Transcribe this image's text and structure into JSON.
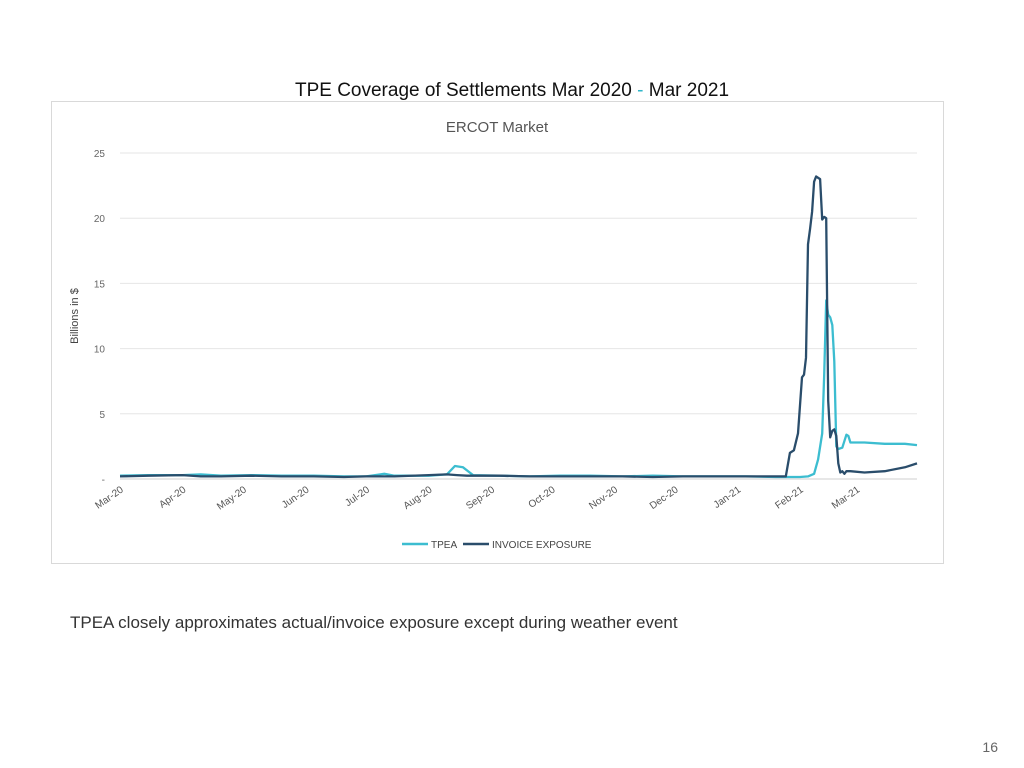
{
  "slide": {
    "title_part1": "TPE Coverage of Settlements Mar 2020",
    "title_dash": "-",
    "title_part2": "Mar 2021",
    "caption": "TPEA closely approximates actual/invoice exposure except during weather event",
    "page_number": "16"
  },
  "chart_data": {
    "type": "line",
    "title": "ERCOT Market",
    "xlabel": "",
    "ylabel": "Billions in $",
    "ylim": [
      0,
      25
    ],
    "y_ticks": [
      "-",
      "5",
      "10",
      "15",
      "20",
      "25"
    ],
    "x_range": [
      "2020-03-01",
      "2021-03-31"
    ],
    "x_ticks": [
      "Mar-20",
      "Apr-20",
      "May-20",
      "Jun-20",
      "Jul-20",
      "Aug-20",
      "Sep-20",
      "Oct-20",
      "Nov-20",
      "Dec-20",
      "Jan-21",
      "Feb-21",
      "Mar-21"
    ],
    "grid": true,
    "legend_position": "bottom",
    "series": [
      {
        "name": "TPEA",
        "color": "#3cbdd0",
        "points": [
          [
            "2020-03-01",
            0.25
          ],
          [
            "2020-03-15",
            0.3
          ],
          [
            "2020-04-01",
            0.3
          ],
          [
            "2020-04-10",
            0.35
          ],
          [
            "2020-04-20",
            0.25
          ],
          [
            "2020-05-05",
            0.3
          ],
          [
            "2020-05-20",
            0.25
          ],
          [
            "2020-06-05",
            0.25
          ],
          [
            "2020-06-20",
            0.2
          ],
          [
            "2020-07-01",
            0.2
          ],
          [
            "2020-07-10",
            0.4
          ],
          [
            "2020-07-15",
            0.25
          ],
          [
            "2020-08-01",
            0.25
          ],
          [
            "2020-08-10",
            0.35
          ],
          [
            "2020-08-14",
            1.0
          ],
          [
            "2020-08-18",
            0.9
          ],
          [
            "2020-08-23",
            0.3
          ],
          [
            "2020-09-05",
            0.25
          ],
          [
            "2020-09-20",
            0.2
          ],
          [
            "2020-10-05",
            0.25
          ],
          [
            "2020-10-20",
            0.25
          ],
          [
            "2020-11-05",
            0.2
          ],
          [
            "2020-11-20",
            0.25
          ],
          [
            "2020-12-05",
            0.2
          ],
          [
            "2020-12-20",
            0.2
          ],
          [
            "2021-01-05",
            0.2
          ],
          [
            "2021-01-20",
            0.15
          ],
          [
            "2021-02-01",
            0.15
          ],
          [
            "2021-02-05",
            0.2
          ],
          [
            "2021-02-08",
            0.4
          ],
          [
            "2021-02-10",
            1.5
          ],
          [
            "2021-02-12",
            3.5
          ],
          [
            "2021-02-13",
            8.0
          ],
          [
            "2021-02-14",
            13.7
          ],
          [
            "2021-02-15",
            12.6
          ],
          [
            "2021-02-16",
            12.4
          ],
          [
            "2021-02-17",
            11.8
          ],
          [
            "2021-02-18",
            9.0
          ],
          [
            "2021-02-19",
            2.5
          ],
          [
            "2021-02-20",
            2.3
          ],
          [
            "2021-02-22",
            2.4
          ],
          [
            "2021-02-24",
            3.4
          ],
          [
            "2021-02-25",
            3.3
          ],
          [
            "2021-02-26",
            2.8
          ],
          [
            "2021-03-05",
            2.8
          ],
          [
            "2021-03-15",
            2.7
          ],
          [
            "2021-03-25",
            2.7
          ],
          [
            "2021-03-31",
            2.6
          ]
        ]
      },
      {
        "name": "INVOICE EXPOSURE",
        "color": "#2a4d6b",
        "points": [
          [
            "2020-03-01",
            0.2
          ],
          [
            "2020-03-15",
            0.25
          ],
          [
            "2020-04-01",
            0.3
          ],
          [
            "2020-04-10",
            0.2
          ],
          [
            "2020-04-20",
            0.2
          ],
          [
            "2020-05-05",
            0.25
          ],
          [
            "2020-05-20",
            0.2
          ],
          [
            "2020-06-05",
            0.2
          ],
          [
            "2020-06-20",
            0.15
          ],
          [
            "2020-07-01",
            0.2
          ],
          [
            "2020-07-15",
            0.2
          ],
          [
            "2020-08-01",
            0.3
          ],
          [
            "2020-08-10",
            0.35
          ],
          [
            "2020-08-15",
            0.3
          ],
          [
            "2020-08-20",
            0.25
          ],
          [
            "2020-09-05",
            0.25
          ],
          [
            "2020-09-20",
            0.2
          ],
          [
            "2020-10-05",
            0.2
          ],
          [
            "2020-10-20",
            0.2
          ],
          [
            "2020-11-05",
            0.2
          ],
          [
            "2020-11-20",
            0.15
          ],
          [
            "2020-12-05",
            0.2
          ],
          [
            "2020-12-20",
            0.2
          ],
          [
            "2021-01-05",
            0.2
          ],
          [
            "2021-01-20",
            0.2
          ],
          [
            "2021-01-25",
            0.2
          ],
          [
            "2021-01-27",
            2.0
          ],
          [
            "2021-01-29",
            2.2
          ],
          [
            "2021-01-31",
            3.5
          ],
          [
            "2021-02-02",
            7.8
          ],
          [
            "2021-02-03",
            8.0
          ],
          [
            "2021-02-04",
            9.3
          ],
          [
            "2021-02-05",
            18.0
          ],
          [
            "2021-02-06",
            19.2
          ],
          [
            "2021-02-07",
            20.5
          ],
          [
            "2021-02-08",
            22.8
          ],
          [
            "2021-02-09",
            23.2
          ],
          [
            "2021-02-11",
            23.0
          ],
          [
            "2021-02-12",
            19.9
          ],
          [
            "2021-02-13",
            20.1
          ],
          [
            "2021-02-14",
            20.0
          ],
          [
            "2021-02-15",
            6.0
          ],
          [
            "2021-02-16",
            3.2
          ],
          [
            "2021-02-17",
            3.7
          ],
          [
            "2021-02-18",
            3.8
          ],
          [
            "2021-02-19",
            3.3
          ],
          [
            "2021-02-20",
            1.2
          ],
          [
            "2021-02-21",
            0.5
          ],
          [
            "2021-02-22",
            0.6
          ],
          [
            "2021-02-23",
            0.4
          ],
          [
            "2021-02-24",
            0.6
          ],
          [
            "2021-02-26",
            0.6
          ],
          [
            "2021-03-05",
            0.5
          ],
          [
            "2021-03-15",
            0.6
          ],
          [
            "2021-03-25",
            0.9
          ],
          [
            "2021-03-31",
            1.2
          ]
        ]
      }
    ]
  }
}
